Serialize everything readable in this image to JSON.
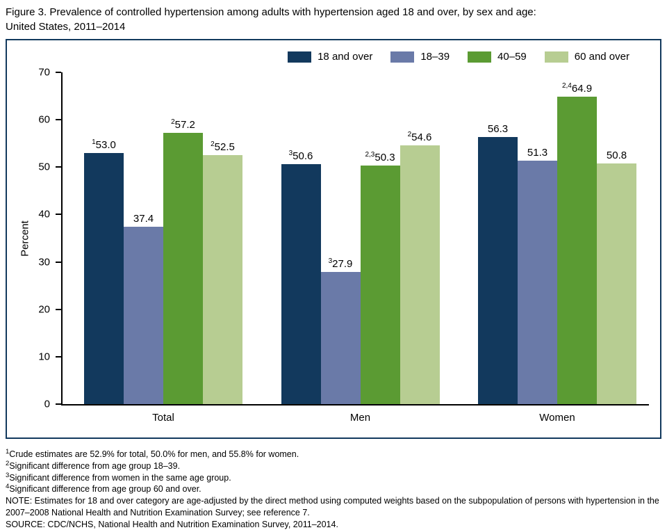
{
  "title": {
    "line1": "Figure 3. Prevalence of controlled hypertension among adults with hypertension aged 18 and over, by sex and age:",
    "line2": "United States, 2011–2014"
  },
  "chart_data": {
    "type": "bar",
    "title": "Figure 3. Prevalence of controlled hypertension among adults with hypertension aged 18 and over, by sex and age: United States, 2011–2014",
    "categories": [
      "Total",
      "Men",
      "Women"
    ],
    "xlabel": "",
    "ylabel": "Percent",
    "ylim": [
      0,
      70
    ],
    "yticks": [
      0,
      10,
      20,
      30,
      40,
      50,
      60,
      70
    ],
    "grid": false,
    "legend_position": "top-right-inside",
    "series": [
      {
        "name": "18 and over",
        "color": "#12395d",
        "values": [
          53.0,
          50.6,
          56.3
        ],
        "value_labels": [
          {
            "sup": "1",
            "text": "53.0"
          },
          {
            "sup": "3",
            "text": "50.6"
          },
          {
            "sup": "",
            "text": "56.3"
          }
        ]
      },
      {
        "name": "18–39",
        "color": "#6a7aa8",
        "values": [
          37.4,
          27.9,
          51.3
        ],
        "value_labels": [
          {
            "sup": "",
            "text": "37.4"
          },
          {
            "sup": "3",
            "text": "27.9"
          },
          {
            "sup": "",
            "text": "51.3"
          }
        ]
      },
      {
        "name": "40–59",
        "color": "#5b9b33",
        "values": [
          57.2,
          50.3,
          64.9
        ],
        "value_labels": [
          {
            "sup": "2",
            "text": "57.2"
          },
          {
            "sup": "2,3",
            "text": "50.3"
          },
          {
            "sup": "2,4",
            "text": "64.9"
          }
        ]
      },
      {
        "name": "60 and over",
        "color": "#b7cd92",
        "values": [
          52.5,
          54.6,
          50.8
        ],
        "value_labels": [
          {
            "sup": "2",
            "text": "52.5"
          },
          {
            "sup": "2",
            "text": "54.6"
          },
          {
            "sup": "",
            "text": "50.8"
          }
        ]
      }
    ]
  },
  "footnotes": [
    {
      "sup": "1",
      "text": "Crude estimates are 52.9% for total, 50.0% for men, and 55.8% for women."
    },
    {
      "sup": "2",
      "text": "Significant difference from age group 18–39."
    },
    {
      "sup": "3",
      "text": "Significant difference from women in the same age group."
    },
    {
      "sup": "4",
      "text": "Significant difference from age group 60 and over."
    },
    {
      "sup": "",
      "text": "NOTE: Estimates for 18 and over category are age-adjusted by the direct method using computed weights based on the subpopulation of persons with hypertension in the 2007–2008 National Health and Nutrition Examination Survey; see reference 7."
    },
    {
      "sup": "",
      "text": "SOURCE: CDC/NCHS, National Health and Nutrition Examination Survey, 2011–2014."
    }
  ]
}
